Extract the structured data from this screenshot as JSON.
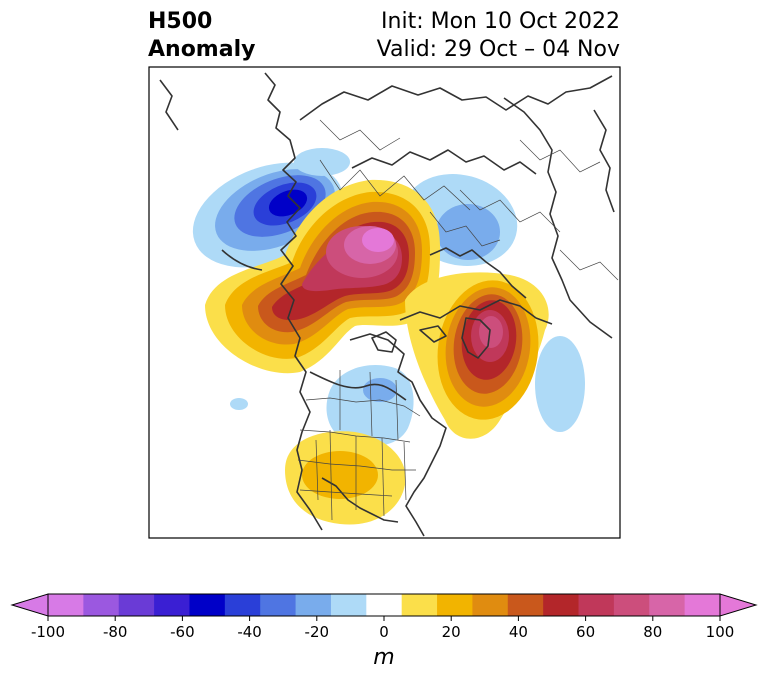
{
  "title": {
    "variable": "H500",
    "field": "Anomaly",
    "init": "Init: Mon 10 Oct 2022",
    "valid": "Valid: 29 Oct – 04 Nov"
  },
  "colorbar": {
    "ticks": [
      "-100",
      "-80",
      "-60",
      "-40",
      "-20",
      "0",
      "20",
      "40",
      "60",
      "80",
      "100"
    ],
    "unit": "m",
    "levels": [
      -100,
      -90,
      -80,
      -70,
      -60,
      -50,
      -40,
      -30,
      -20,
      -10,
      10,
      20,
      30,
      40,
      50,
      60,
      70,
      80,
      90,
      100
    ],
    "colors": [
      "#d77ae6",
      "#9b58e0",
      "#6a3bd6",
      "#3a1fd3",
      "#0000c8",
      "#2a3fd8",
      "#4f75e2",
      "#79acec",
      "#aedaf7",
      "#ffffff",
      "#fbdf4a",
      "#f2b400",
      "#e08c10",
      "#c9581c",
      "#b3262a",
      "#c0385a",
      "#cc4e7c",
      "#d765a8",
      "#e478d8"
    ],
    "extend_min_color": "#d77ae6",
    "extend_max_color": "#e478d8"
  },
  "map_features": {
    "region": "North America and the Arctic (polar stereographic)",
    "contour_field": "500 hPa geopotential height anomaly"
  }
}
